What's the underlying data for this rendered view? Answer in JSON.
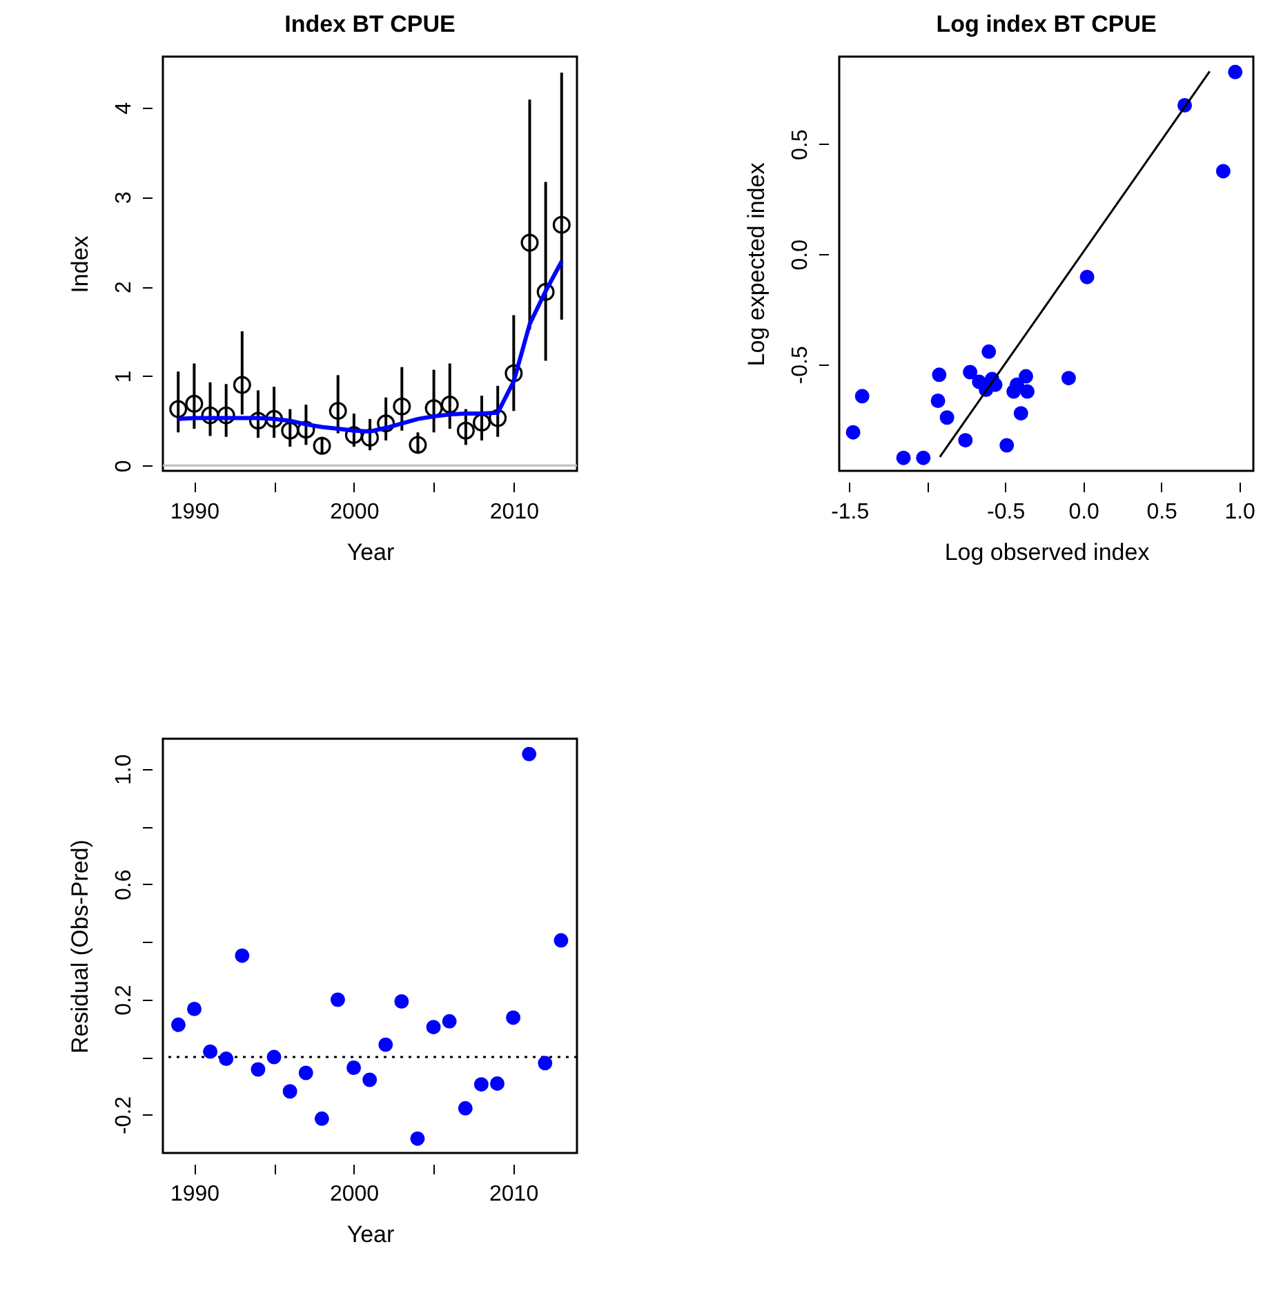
{
  "chart_data": [
    {
      "type": "scatter",
      "title": "Index BT CPUE",
      "xlabel": "Year",
      "ylabel": "Index",
      "x": [
        1989,
        1990,
        1991,
        1992,
        1993,
        1994,
        1995,
        1996,
        1997,
        1998,
        1999,
        2000,
        2001,
        2002,
        2003,
        2004,
        2005,
        2006,
        2007,
        2008,
        2009,
        2010,
        2011,
        2012,
        2013
      ],
      "series": [
        {
          "type": "scatter",
          "color": "#000000",
          "marker": "circle",
          "values": [
            0.63,
            0.69,
            0.56,
            0.56,
            0.9,
            0.5,
            0.52,
            0.39,
            0.4,
            0.22,
            0.61,
            0.34,
            0.31,
            0.47,
            0.66,
            0.23,
            0.64,
            0.68,
            0.39,
            0.48,
            0.53,
            1.03,
            2.49,
            1.94,
            2.69
          ],
          "errors": [
            [
              0.37,
              1.05
            ],
            [
              0.41,
              1.14
            ],
            [
              0.33,
              0.93
            ],
            [
              0.32,
              0.91
            ],
            [
              0.57,
              1.5
            ],
            [
              0.31,
              0.84
            ],
            [
              0.31,
              0.88
            ],
            [
              0.21,
              0.63
            ],
            [
              0.23,
              0.68
            ],
            [
              0.13,
              0.32
            ],
            [
              0.36,
              1.01
            ],
            [
              0.21,
              0.58
            ],
            [
              0.17,
              0.52
            ],
            [
              0.28,
              0.76
            ],
            [
              0.39,
              1.1
            ],
            [
              0.15,
              0.37
            ],
            [
              0.37,
              1.07
            ],
            [
              0.41,
              1.14
            ],
            [
              0.23,
              0.63
            ],
            [
              0.28,
              0.78
            ],
            [
              0.32,
              0.89
            ],
            [
              0.61,
              1.68
            ],
            [
              1.52,
              4.09
            ],
            [
              1.17,
              3.17
            ],
            [
              1.63,
              4.39
            ]
          ]
        },
        {
          "type": "line",
          "color": "#0000ff",
          "values": [
            0.52,
            0.53,
            0.53,
            0.53,
            0.53,
            0.53,
            0.52,
            0.5,
            0.46,
            0.43,
            0.41,
            0.39,
            0.38,
            0.42,
            0.47,
            0.52,
            0.55,
            0.57,
            0.58,
            0.58,
            0.59,
            0.94,
            1.58,
            1.95,
            2.28
          ]
        }
      ],
      "xlim": [
        1988.04,
        2013.96
      ],
      "ylim": [
        -0.06,
        4.57
      ],
      "xticks": [
        1990,
        {
          "value": 1995,
          "label": null
        },
        2000,
        {
          "value": 2005,
          "label": null
        },
        2010
      ],
      "yticks": [
        0,
        1,
        2,
        3,
        4
      ],
      "ref_lines": [
        {
          "axis": "y",
          "value": 0,
          "color": "#bebebe",
          "line_style": "solid"
        }
      ],
      "grid": false
    },
    {
      "type": "scatter",
      "title": "Log index BT CPUE",
      "xlabel": "Log observed index",
      "ylabel": "Log expected index",
      "series": [
        {
          "type": "scatter",
          "color": "#0000ff",
          "marker": "circle",
          "x": [
            -1.476,
            -1.418,
            -1.153,
            -1.026,
            -0.932,
            -0.924,
            -0.874,
            -0.756,
            -0.726,
            -0.668,
            -0.624,
            -0.606,
            -0.585,
            -0.565,
            -0.491,
            -0.447,
            -0.426,
            -0.4,
            -0.368,
            -0.359,
            -0.094,
            0.024,
            0.65,
            0.897,
            0.974
          ],
          "values": [
            -0.808,
            -0.644,
            -0.924,
            -0.924,
            -0.665,
            -0.547,
            -0.741,
            -0.844,
            -0.535,
            -0.579,
            -0.615,
            -0.442,
            -0.566,
            -0.592,
            -0.867,
            -0.623,
            -0.592,
            -0.722,
            -0.554,
            -0.623,
            -0.562,
            -0.103,
            0.676,
            0.377,
            0.827
          ]
        },
        {
          "type": "line",
          "color": "#000000",
          "x": [
            -0.92,
            0.81
          ],
          "values": [
            -0.92,
            0.83
          ]
        }
      ],
      "xlim": [
        -1.565,
        1.09
      ],
      "ylim": [
        -0.983,
        0.897
      ],
      "xticks": [
        -1.5,
        {
          "value": -1.0,
          "label": null
        },
        -0.5,
        {
          "value": 0.0,
          "label": "0.0"
        },
        0.5,
        {
          "value": 1.0,
          "label": "1.0"
        }
      ],
      "yticks": [
        -0.5,
        {
          "value": 0.0,
          "label": "0.0"
        },
        0.5
      ],
      "grid": false
    },
    {
      "type": "scatter",
      "xlabel": "Year",
      "ylabel": "Residual (Obs-Pred)",
      "x": [
        1989,
        1990,
        1991,
        1992,
        1993,
        1994,
        1995,
        1996,
        1997,
        1998,
        1999,
        2000,
        2001,
        2002,
        2003,
        2004,
        2005,
        2006,
        2007,
        2008,
        2009,
        2010,
        2011,
        2012,
        2013
      ],
      "series": [
        {
          "type": "scatter",
          "color": "#0000ff",
          "marker": "circle",
          "values": [
            0.112,
            0.167,
            0.019,
            -0.006,
            0.352,
            -0.043,
            0.0,
            -0.119,
            -0.055,
            -0.214,
            0.199,
            -0.037,
            -0.079,
            0.043,
            0.193,
            -0.283,
            0.104,
            0.124,
            -0.178,
            -0.095,
            -0.092,
            0.137,
            1.052,
            -0.021,
            0.405
          ]
        }
      ],
      "xlim": [
        1988.03,
        2014.0
      ],
      "ylim": [
        -0.333,
        1.105
      ],
      "xticks": [
        1990,
        {
          "value": 1995,
          "label": null
        },
        2000,
        {
          "value": 2005,
          "label": null
        },
        2010
      ],
      "yticks": [
        {
          "value": -0.2,
          "label": "-0.2"
        },
        {
          "value": 0.0,
          "label": null
        },
        {
          "value": 0.2,
          "label": "0.2"
        },
        {
          "value": 0.4,
          "label": null
        },
        {
          "value": 0.6,
          "label": "0.6"
        },
        {
          "value": 0.8,
          "label": null
        },
        {
          "value": 1.0,
          "label": "1.0"
        }
      ],
      "ref_lines": [
        {
          "axis": "y",
          "value": 0,
          "color": "#000000",
          "line_style": "dotted"
        }
      ],
      "grid": false
    }
  ]
}
